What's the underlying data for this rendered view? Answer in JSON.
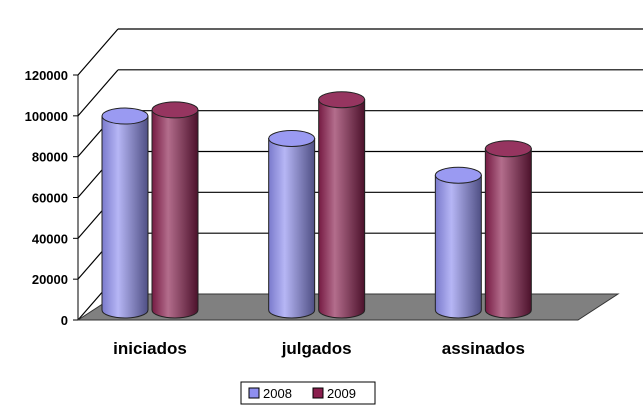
{
  "chart_data": {
    "type": "bar",
    "categories": [
      "iniciados",
      "julgados",
      "assinados"
    ],
    "series": [
      {
        "name": "2008",
        "values": [
          95000,
          84000,
          66000
        ],
        "color": "#8f8ff0"
      },
      {
        "name": "2009",
        "values": [
          98000,
          103000,
          79000
        ],
        "color": "#8a1f4e"
      }
    ],
    "ylim": [
      0,
      120000
    ],
    "yticks": [
      "0",
      "20000",
      "40000",
      "60000",
      "80000",
      "100000",
      "120000"
    ],
    "grid": true,
    "floor_color": "#808080",
    "legend_position": "bottom"
  }
}
